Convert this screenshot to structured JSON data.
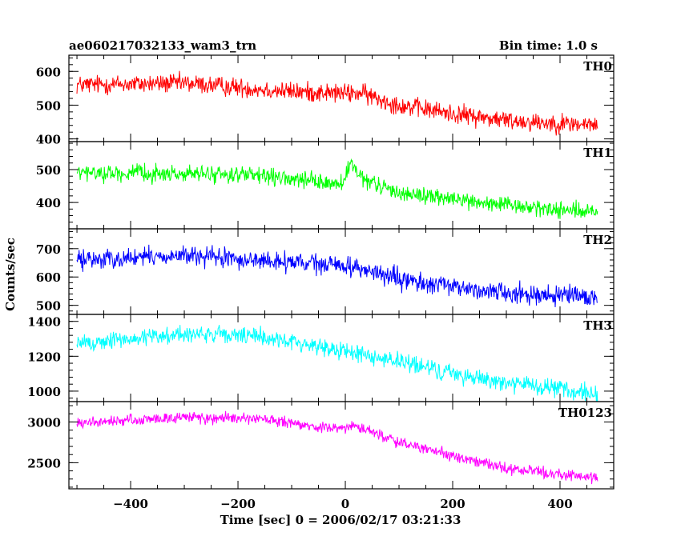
{
  "chart_data": {
    "type": "line",
    "title": "ae060217032133_wam3_trn",
    "bin_label": "Bin time: 1.0 s",
    "xlabel": "Time [sec] 0 = 2006/02/17 03:21:33",
    "ylabel": "Counts/sec",
    "xlim": [
      -515,
      500
    ],
    "x_ticks": [
      -400,
      -200,
      0,
      200,
      400
    ],
    "x_tick_labels": [
      "−400",
      "−200",
      "0",
      "200",
      "400"
    ],
    "x_range": [
      -500,
      470
    ],
    "panels": [
      {
        "name": "TH0",
        "color": "#ff0000",
        "ylim": [
          392,
          648
        ],
        "ticks": [
          400,
          500,
          600
        ],
        "profile": [
          [
            -500,
            560
          ],
          [
            -300,
            565
          ],
          [
            -100,
            540
          ],
          [
            0,
            535
          ],
          [
            30,
            535
          ],
          [
            100,
            500
          ],
          [
            200,
            475
          ],
          [
            300,
            455
          ],
          [
            470,
            440
          ]
        ],
        "noise": 25
      },
      {
        "name": "TH1",
        "color": "#00ff00",
        "ylim": [
          320,
          585
        ],
        "ticks": [
          400,
          500
        ],
        "profile": [
          [
            -500,
            490
          ],
          [
            -200,
            485
          ],
          [
            -100,
            470
          ],
          [
            -5,
            455
          ],
          [
            10,
            520
          ],
          [
            30,
            470
          ],
          [
            100,
            430
          ],
          [
            200,
            410
          ],
          [
            300,
            390
          ],
          [
            470,
            370
          ]
        ],
        "noise": 22
      },
      {
        "name": "TH2",
        "color": "#0000ff",
        "ylim": [
          468,
          770
        ],
        "ticks": [
          500,
          600,
          700
        ],
        "profile": [
          [
            -500,
            660
          ],
          [
            -300,
            675
          ],
          [
            -100,
            650
          ],
          [
            0,
            640
          ],
          [
            30,
            630
          ],
          [
            100,
            590
          ],
          [
            200,
            565
          ],
          [
            300,
            545
          ],
          [
            470,
            525
          ]
        ],
        "noise": 30
      },
      {
        "name": "TH3",
        "color": "#00ffff",
        "ylim": [
          940,
          1440
        ],
        "ticks": [
          1000,
          1200,
          1400
        ],
        "profile": [
          [
            -500,
            1270
          ],
          [
            -300,
            1330
          ],
          [
            -150,
            1310
          ],
          [
            0,
            1230
          ],
          [
            100,
            1170
          ],
          [
            200,
            1100
          ],
          [
            300,
            1050
          ],
          [
            470,
            980
          ]
        ],
        "noise": 45
      },
      {
        "name": "TH0123",
        "color": "#ff00ff",
        "ylim": [
          2180,
          3250
        ],
        "ticks": [
          2500,
          3000
        ],
        "profile": [
          [
            -500,
            2980
          ],
          [
            -300,
            3060
          ],
          [
            -150,
            3030
          ],
          [
            -50,
            2930
          ],
          [
            0,
            2920
          ],
          [
            20,
            2960
          ],
          [
            100,
            2750
          ],
          [
            200,
            2580
          ],
          [
            300,
            2430
          ],
          [
            470,
            2310
          ]
        ],
        "noise": 60
      }
    ]
  }
}
